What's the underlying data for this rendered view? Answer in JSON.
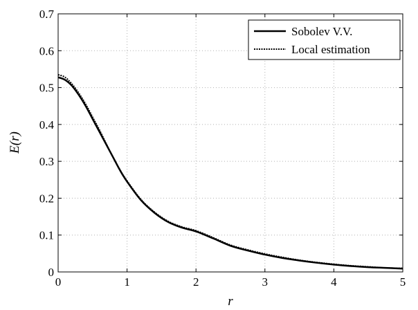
{
  "chart_data": {
    "type": "line",
    "xlabel": "r",
    "ylabel": "E(r)",
    "xlim": [
      0,
      5
    ],
    "ylim": [
      0,
      0.7
    ],
    "grid": true,
    "legend_position": "top-right",
    "x_ticks": [
      "0",
      "1",
      "2",
      "3",
      "4",
      "5"
    ],
    "y_ticks": [
      "0",
      "0.1",
      "0.2",
      "0.3",
      "0.4",
      "0.5",
      "0.6",
      "0.7"
    ],
    "x": [
      0,
      0.1,
      0.2,
      0.3,
      0.4,
      0.5,
      0.6,
      0.7,
      0.8,
      0.9,
      1.0,
      1.2,
      1.4,
      1.6,
      1.8,
      2.0,
      2.25,
      2.5,
      2.75,
      3.0,
      3.25,
      3.5,
      3.75,
      4.0,
      4.25,
      4.5,
      4.75,
      5.0
    ],
    "series": [
      {
        "name": "Sobolev V.V.",
        "style": "solid",
        "color": "#000000",
        "values": [
          0.528,
          0.521,
          0.505,
          0.48,
          0.45,
          0.415,
          0.38,
          0.345,
          0.31,
          0.275,
          0.245,
          0.195,
          0.16,
          0.135,
          0.12,
          0.11,
          0.091,
          0.071,
          0.058,
          0.047,
          0.038,
          0.031,
          0.025,
          0.02,
          0.016,
          0.013,
          0.011,
          0.009
        ]
      },
      {
        "name": "Local estimation",
        "style": "dotted",
        "color": "#000000",
        "values": [
          0.535,
          0.528,
          0.51,
          0.485,
          0.455,
          0.42,
          0.385,
          0.347,
          0.31,
          0.276,
          0.247,
          0.197,
          0.162,
          0.137,
          0.122,
          0.112,
          0.093,
          0.073,
          0.06,
          0.049,
          0.04,
          0.032,
          0.026,
          0.021,
          0.017,
          0.014,
          0.011,
          0.01
        ]
      }
    ]
  }
}
